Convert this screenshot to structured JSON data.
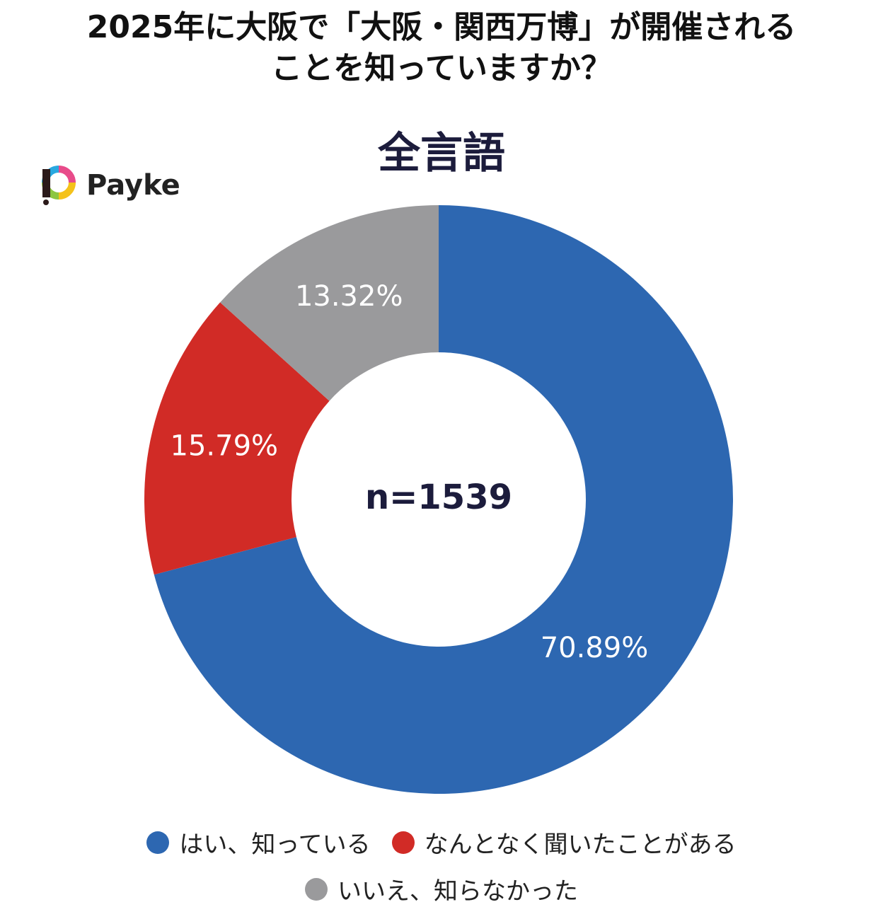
{
  "title_line1": "2025年に大阪で「大阪・関西万博」が開催される",
  "title_line2": "ことを知っていますか？",
  "brand": {
    "name": "Payke"
  },
  "chart_data": {
    "type": "pie",
    "title": "2025年に大阪で「大阪・関西万博」が開催されることを知っていますか？",
    "subtitle": "全言語",
    "center_label": "n=1539",
    "legend_placement": "bottom",
    "slices": [
      {
        "label": "はい、知っている",
        "value": 70.89,
        "display": "70.89%",
        "color": "#2d67b1"
      },
      {
        "label": "なんとなく聞いたことがある",
        "value": 15.79,
        "display": "15.79%",
        "color": "#d12b26"
      },
      {
        "label": "いいえ、知らなかった",
        "value": 13.32,
        "display": "13.32%",
        "color": "#9a9a9c"
      }
    ]
  }
}
